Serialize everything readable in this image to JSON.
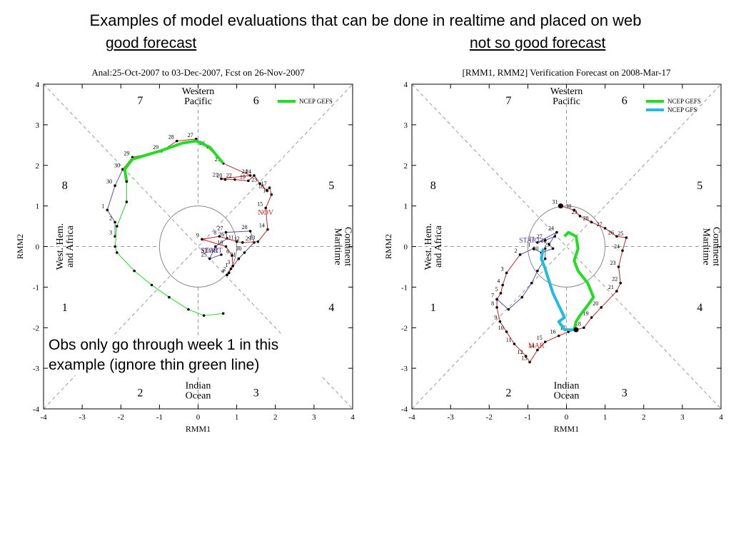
{
  "page": {
    "title": "Examples of model evaluations that can be done in realtime and placed on web",
    "good_label": "good forecast",
    "bad_label": "not so good forecast",
    "annotation_line1": "Obs only go through week 1 in this",
    "annotation_line2": "example (ignore thin green line)"
  },
  "chart_data": [
    {
      "type": "line",
      "title": "Anal:25-Oct-2007 to 03-Dec-2007, Fcst on 26-Nov-2007",
      "xlabel": "RMM1",
      "ylabel": "RMM2",
      "xlim": [
        -4,
        4
      ],
      "ylim": [
        -4,
        4
      ],
      "xticks": [
        "-4",
        "-3",
        "-2",
        "-1",
        "0",
        "1",
        "2",
        "3",
        "4"
      ],
      "yticks": [
        "4",
        "3",
        "2",
        "1",
        "0",
        "-1",
        "-2",
        "-3",
        "-4"
      ],
      "phase_numbers": [
        "7",
        "6",
        "8",
        "5",
        "1",
        "4",
        "2",
        "3"
      ],
      "regions": {
        "top": [
          "Western",
          "Pacific"
        ],
        "bottom": [
          "Indian",
          "Ocean"
        ],
        "left": [
          "West. Hem.",
          "and Africa"
        ],
        "right": [
          "Maritime",
          "Continent"
        ]
      },
      "month_labels": [
        {
          "text": "START",
          "x": 0.35,
          "y": -0.15,
          "color": "#6a3db5"
        },
        {
          "text": "NOV",
          "x": 1.75,
          "y": 0.78,
          "color": "#cc2222"
        }
      ],
      "legend": [
        {
          "name": "NCEP GEFS",
          "color": "#22dd22"
        }
      ],
      "series": [
        {
          "name": "obs-oct",
          "color": "#5555aa",
          "points": [
            {
              "x": 0.6,
              "y": -0.2,
              "label": "START"
            },
            {
              "x": 0.3,
              "y": -0.3,
              "label": "25"
            },
            {
              "x": 0.45,
              "y": 0.0,
              "label": ""
            },
            {
              "x": 0.75,
              "y": 0.2,
              "label": "26"
            },
            {
              "x": 0.72,
              "y": 0.35,
              "label": "27"
            },
            {
              "x": 1.35,
              "y": 0.38,
              "label": "28"
            },
            {
              "x": 1.45,
              "y": 0.1,
              "label": "29"
            },
            {
              "x": 1.2,
              "y": -0.15,
              "label": "30"
            },
            {
              "x": 1.05,
              "y": -0.3,
              "label": "31"
            }
          ]
        },
        {
          "name": "obs-nov",
          "color": "#cc2222",
          "points": [
            {
              "x": 1.05,
              "y": -0.3,
              "label": ""
            },
            {
              "x": 0.85,
              "y": -0.55,
              "label": "1"
            },
            {
              "x": 0.8,
              "y": -0.65,
              "label": "2"
            },
            {
              "x": 0.75,
              "y": -0.7,
              "label": "4"
            },
            {
              "x": 0.9,
              "y": -0.48,
              "label": "3"
            },
            {
              "x": 0.88,
              "y": -0.22,
              "label": "6"
            },
            {
              "x": 0.72,
              "y": 0.0,
              "label": "10"
            },
            {
              "x": 0.1,
              "y": 0.18,
              "label": "9"
            },
            {
              "x": 0.55,
              "y": 0.25,
              "label": "8"
            },
            {
              "x": 1.0,
              "y": 0.12,
              "label": "11"
            },
            {
              "x": 1.15,
              "y": 0.1,
              "label": "12"
            },
            {
              "x": 1.55,
              "y": 0.12,
              "label": "13"
            },
            {
              "x": 1.8,
              "y": 0.42,
              "label": "14"
            },
            {
              "x": 1.75,
              "y": 0.95,
              "label": "15"
            },
            {
              "x": 1.9,
              "y": 1.28,
              "label": "16"
            },
            {
              "x": 1.85,
              "y": 1.45,
              "label": "17"
            },
            {
              "x": 1.78,
              "y": 1.38,
              "label": "18"
            },
            {
              "x": 1.6,
              "y": 1.55,
              "label": "23"
            },
            {
              "x": 1.45,
              "y": 1.75,
              "label": "24"
            },
            {
              "x": 1.3,
              "y": 1.62,
              "label": "19"
            },
            {
              "x": 0.95,
              "y": 1.65,
              "label": "22"
            },
            {
              "x": 0.7,
              "y": 1.65,
              "label": "20"
            },
            {
              "x": 0.6,
              "y": 1.67,
              "label": "21"
            },
            {
              "x": 1.35,
              "y": 1.75,
              "label": "24"
            },
            {
              "x": 0.65,
              "y": 2.05,
              "label": "25"
            },
            {
              "x": 0.25,
              "y": 2.45,
              "label": "26"
            },
            {
              "x": -0.05,
              "y": 2.65,
              "label": "27"
            },
            {
              "x": -0.55,
              "y": 2.6,
              "label": "28"
            },
            {
              "x": -0.95,
              "y": 2.35,
              "label": "29"
            },
            {
              "x": -1.7,
              "y": 2.2,
              "label": "29"
            },
            {
              "x": -1.95,
              "y": 1.9,
              "label": "30"
            }
          ]
        },
        {
          "name": "obs-dec",
          "color": "#5555aa",
          "points": [
            {
              "x": -1.95,
              "y": 1.9,
              "label": ""
            },
            {
              "x": -2.15,
              "y": 1.5,
              "label": "30"
            },
            {
              "x": -2.35,
              "y": 0.9,
              "label": "1"
            },
            {
              "x": -2.15,
              "y": 0.6,
              "label": "2"
            },
            {
              "x": -2.15,
              "y": 0.25,
              "label": "3"
            }
          ]
        },
        {
          "name": "NCEP GEFS",
          "color": "#22dd22",
          "thick": true,
          "points": [
            {
              "x": -1.85,
              "y": 1.6,
              "label": ""
            },
            {
              "x": -1.9,
              "y": 1.9,
              "label": ""
            },
            {
              "x": -1.7,
              "y": 2.15,
              "label": ""
            },
            {
              "x": -1.0,
              "y": 2.35,
              "label": ""
            },
            {
              "x": -0.4,
              "y": 2.55,
              "label": ""
            },
            {
              "x": -0.05,
              "y": 2.6,
              "label": ""
            },
            {
              "x": 0.3,
              "y": 2.45,
              "label": ""
            },
            {
              "x": 0.65,
              "y": 2.05,
              "label": ""
            }
          ]
        },
        {
          "name": "thin-green",
          "color": "#22dd22",
          "points": [
            {
              "x": -1.85,
              "y": 1.6,
              "label": ""
            },
            {
              "x": -1.85,
              "y": 1.1,
              "label": ""
            },
            {
              "x": -2.1,
              "y": 0.5,
              "label": ""
            },
            {
              "x": -2.15,
              "y": 0.0,
              "label": ""
            },
            {
              "x": -2.1,
              "y": -0.15,
              "label": ""
            },
            {
              "x": -1.65,
              "y": -0.6,
              "label": ""
            },
            {
              "x": -1.2,
              "y": -0.95,
              "label": ""
            },
            {
              "x": -0.75,
              "y": -1.25,
              "label": ""
            },
            {
              "x": -0.25,
              "y": -1.55,
              "label": ""
            },
            {
              "x": 0.15,
              "y": -1.7,
              "label": ""
            },
            {
              "x": 0.65,
              "y": -1.65,
              "label": ""
            }
          ]
        }
      ]
    },
    {
      "type": "line",
      "title": "[RMM1, RMM2] Verification Forecast on 2008-Mar-17",
      "xlabel": "RMM1",
      "ylabel": "RMM2",
      "xlim": [
        -4,
        4
      ],
      "ylim": [
        -4,
        4
      ],
      "xticks": [
        "-4",
        "-3",
        "-2",
        "-1",
        "0",
        "1",
        "2",
        "3",
        "4"
      ],
      "yticks": [
        "4",
        "3",
        "2",
        "1",
        "0",
        "-1",
        "-2",
        "-3",
        "-4"
      ],
      "phase_numbers": [
        "7",
        "6",
        "8",
        "5",
        "1",
        "4",
        "2",
        "3"
      ],
      "regions": {
        "top": [
          "Western",
          "Pacific"
        ],
        "bottom": [
          "Indian",
          "Ocean"
        ],
        "left": [
          "West. Hem.",
          "and Africa"
        ],
        "right": [
          "Maritime",
          "Continent"
        ]
      },
      "month_labels": [
        {
          "text": "START",
          "x": -0.95,
          "y": 0.1,
          "color": "#6a3db5"
        },
        {
          "text": "MAR",
          "x": -0.78,
          "y": -2.5,
          "color": "#cc2222"
        }
      ],
      "legend": [
        {
          "name": "NCEP GEFS",
          "color": "#22dd22"
        },
        {
          "name": "NCEP GFS",
          "color": "#22bbdd"
        }
      ],
      "series": [
        {
          "name": "obs-feb",
          "color": "#5555aa",
          "points": [
            {
              "x": -0.3,
              "y": 0.25,
              "label": ""
            },
            {
              "x": -0.55,
              "y": 0.15,
              "label": "27"
            },
            {
              "x": -0.75,
              "y": 0.1,
              "label": "21"
            },
            {
              "x": -0.25,
              "y": 0.35,
              "label": "24"
            },
            {
              "x": -0.45,
              "y": 0.05,
              "label": "22"
            },
            {
              "x": -0.35,
              "y": -0.05,
              "label": "25"
            },
            {
              "x": -0.65,
              "y": -0.15,
              "label": "20"
            },
            {
              "x": -0.85,
              "y": -0.05,
              "label": "1"
            },
            {
              "x": -1.2,
              "y": -0.2,
              "label": "2"
            }
          ]
        },
        {
          "name": "obs-mar",
          "color": "#cc2222",
          "points": [
            {
              "x": -1.2,
              "y": -0.2,
              "label": ""
            },
            {
              "x": -1.55,
              "y": -0.65,
              "label": "3"
            },
            {
              "x": -1.65,
              "y": -0.95,
              "label": "4"
            },
            {
              "x": -1.7,
              "y": -1.15,
              "label": "5"
            },
            {
              "x": -1.8,
              "y": -1.3,
              "label": "7"
            },
            {
              "x": -1.8,
              "y": -1.5,
              "label": "8"
            },
            {
              "x": -1.72,
              "y": -1.85,
              "label": "9"
            },
            {
              "x": -1.55,
              "y": -2.1,
              "label": "10"
            },
            {
              "x": -1.35,
              "y": -2.4,
              "label": "11"
            },
            {
              "x": -1.05,
              "y": -2.7,
              "label": "12"
            },
            {
              "x": -0.95,
              "y": -2.85,
              "label": "13"
            },
            {
              "x": -0.75,
              "y": -2.55,
              "label": "14"
            },
            {
              "x": -0.55,
              "y": -2.35,
              "label": "15"
            },
            {
              "x": -0.2,
              "y": -2.2,
              "label": "16"
            },
            {
              "x": 0.05,
              "y": -2.1,
              "label": "17"
            },
            {
              "x": 0.45,
              "y": -2.0,
              "label": "18"
            },
            {
              "x": 0.65,
              "y": -1.75,
              "label": "19"
            },
            {
              "x": 0.9,
              "y": -1.5,
              "label": "20"
            },
            {
              "x": 1.3,
              "y": -1.1,
              "label": "21"
            },
            {
              "x": 1.4,
              "y": -0.9,
              "label": "22"
            },
            {
              "x": 1.35,
              "y": -0.5,
              "label": "23"
            },
            {
              "x": 1.45,
              "y": -0.1,
              "label": "24"
            },
            {
              "x": 1.55,
              "y": 0.22,
              "label": "25"
            },
            {
              "x": 1.3,
              "y": 0.25,
              "label": "26"
            },
            {
              "x": 1.0,
              "y": 0.45,
              "label": "27"
            },
            {
              "x": 0.65,
              "y": 0.6,
              "label": "28"
            },
            {
              "x": 0.35,
              "y": 0.75,
              "label": "29"
            },
            {
              "x": 0.2,
              "y": 0.9,
              "label": "30"
            },
            {
              "x": -0.15,
              "y": 1.0,
              "label": "31"
            }
          ]
        },
        {
          "name": "obs-mar-tail",
          "color": "#5555aa",
          "points": [
            {
              "x": -1.8,
              "y": -1.3,
              "label": ""
            },
            {
              "x": -1.5,
              "y": -1.55,
              "label": ""
            },
            {
              "x": -1.15,
              "y": -1.25,
              "label": ""
            },
            {
              "x": -0.9,
              "y": -0.9,
              "label": ""
            },
            {
              "x": -0.75,
              "y": -0.6,
              "label": ""
            },
            {
              "x": -0.55,
              "y": -0.3,
              "label": ""
            },
            {
              "x": -0.55,
              "y": -0.05,
              "label": ""
            }
          ]
        },
        {
          "name": "NCEP GEFS",
          "color": "#22dd22",
          "thick": true,
          "points": [
            {
              "x": 0.2,
              "y": -2.05,
              "label": ""
            },
            {
              "x": 0.25,
              "y": -1.85,
              "label": ""
            },
            {
              "x": 0.35,
              "y": -1.7,
              "label": ""
            },
            {
              "x": 0.55,
              "y": -1.45,
              "label": ""
            },
            {
              "x": 0.7,
              "y": -1.25,
              "label": ""
            },
            {
              "x": 0.55,
              "y": -0.9,
              "label": ""
            },
            {
              "x": 0.3,
              "y": -0.6,
              "label": ""
            },
            {
              "x": 0.2,
              "y": -0.35,
              "label": ""
            },
            {
              "x": 0.3,
              "y": -0.05,
              "label": ""
            },
            {
              "x": 0.25,
              "y": 0.25,
              "label": ""
            },
            {
              "x": 0.05,
              "y": 0.35,
              "label": ""
            },
            {
              "x": -0.05,
              "y": 0.25,
              "label": ""
            }
          ]
        },
        {
          "name": "NCEP GFS",
          "color": "#22bbdd",
          "thick": true,
          "points": [
            {
              "x": 0.2,
              "y": -2.05,
              "label": ""
            },
            {
              "x": -0.05,
              "y": -2.05,
              "label": ""
            },
            {
              "x": -0.2,
              "y": -1.85,
              "label": ""
            },
            {
              "x": -0.05,
              "y": -1.75,
              "label": ""
            },
            {
              "x": -0.2,
              "y": -1.45,
              "label": ""
            },
            {
              "x": -0.35,
              "y": -1.15,
              "label": ""
            },
            {
              "x": -0.45,
              "y": -0.85,
              "label": ""
            },
            {
              "x": -0.55,
              "y": -0.55,
              "label": ""
            },
            {
              "x": -0.65,
              "y": -0.3,
              "label": ""
            },
            {
              "x": -0.6,
              "y": -0.05,
              "label": ""
            }
          ]
        },
        {
          "name": "obs-markers",
          "color": "#cc2222",
          "points": [
            {
              "x": 0.25,
              "y": -2.05,
              "label": ""
            },
            {
              "x": -0.15,
              "y": 1.0,
              "label": ""
            }
          ]
        }
      ]
    }
  ]
}
